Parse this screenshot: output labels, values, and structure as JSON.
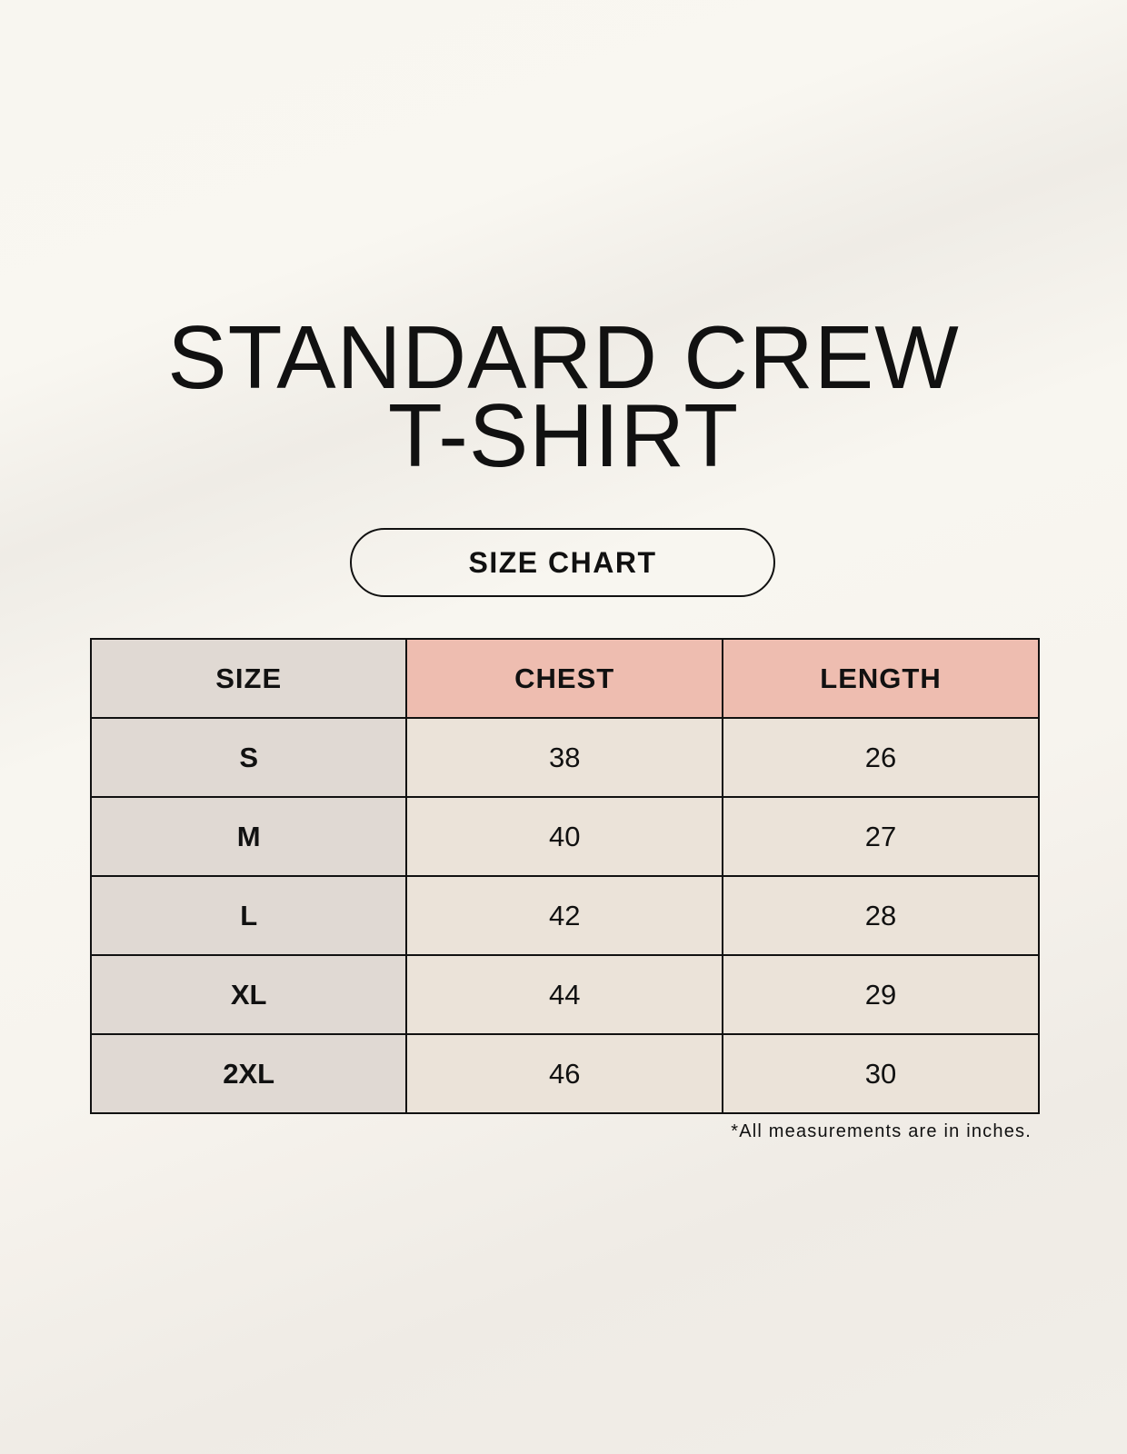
{
  "title": {
    "line1": "STANDARD CREW",
    "line2": "T-SHIRT"
  },
  "subtitle": "SIZE CHART",
  "table": {
    "headers": [
      "SIZE",
      "CHEST",
      "LENGTH"
    ],
    "rows": [
      [
        "S",
        "38",
        "26"
      ],
      [
        "M",
        "40",
        "27"
      ],
      [
        "L",
        "42",
        "28"
      ],
      [
        "XL",
        "44",
        "29"
      ],
      [
        "2XL",
        "46",
        "30"
      ]
    ]
  },
  "footnote": "*All measurements are in inches.",
  "colors": {
    "size_column": "#e0d9d3",
    "header_accent": "#eebdb0",
    "value_cells": "#ebe3d9"
  }
}
